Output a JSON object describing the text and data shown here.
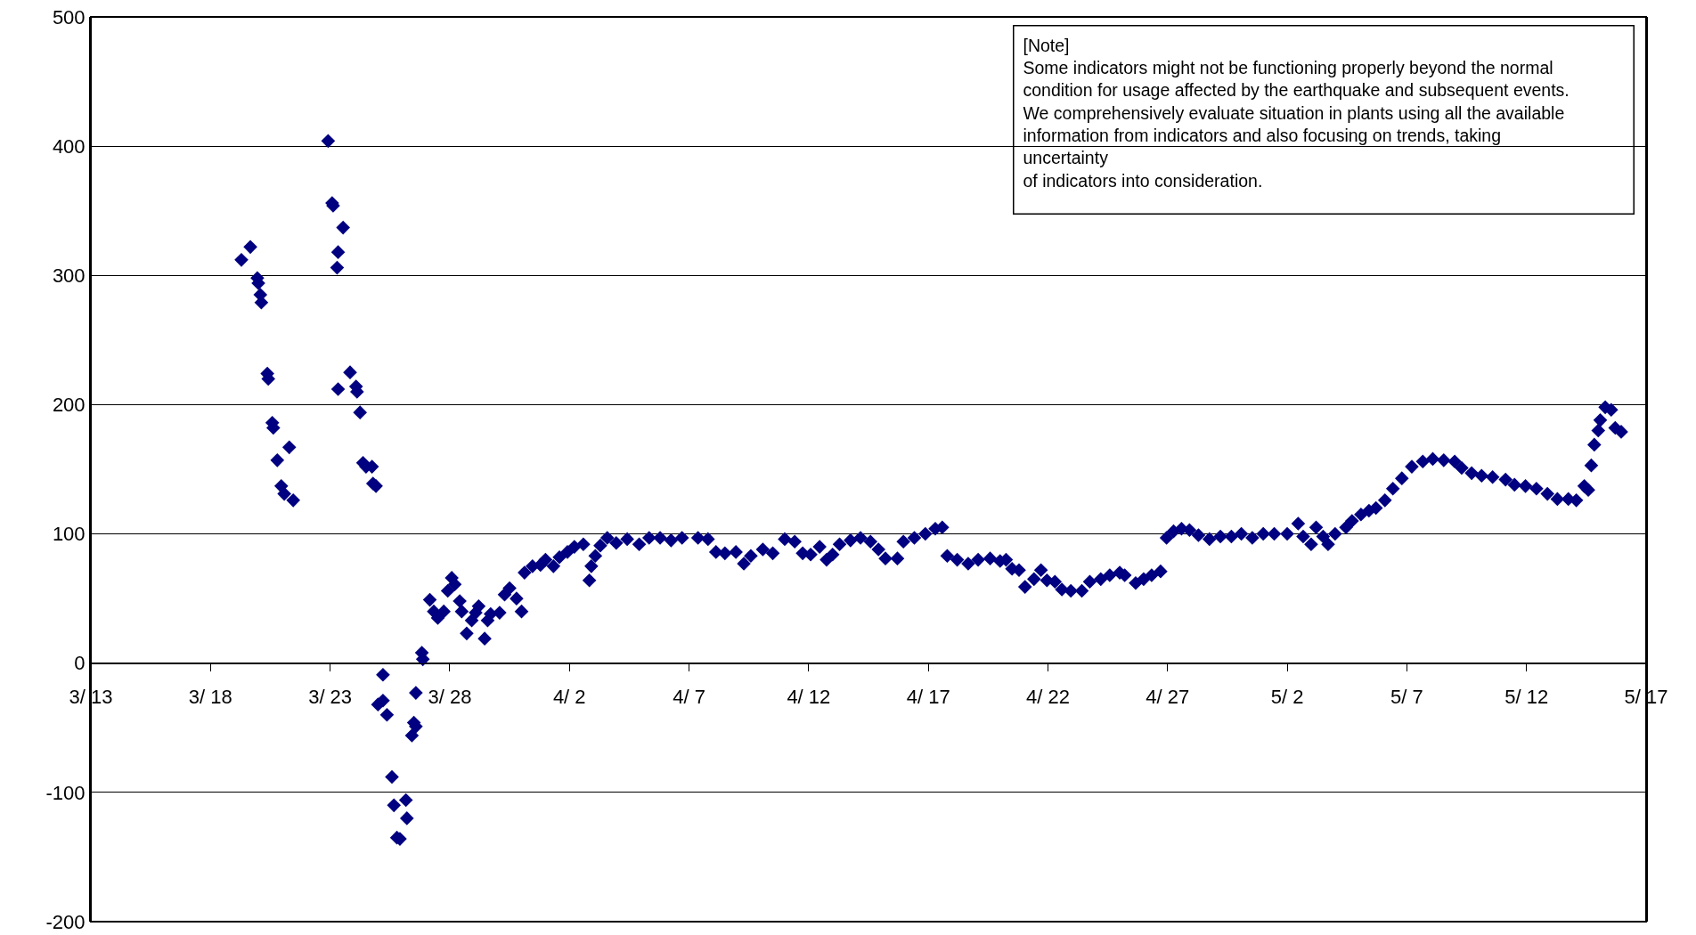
{
  "chart_data": {
    "type": "scatter",
    "marker": "diamond",
    "grid": "y",
    "xlim": [
      "--03-13",
      "--05-17"
    ],
    "xticks": [
      {
        "value": "--03-13",
        "label": "3/ 13"
      },
      {
        "value": "--03-18",
        "label": "3/ 18"
      },
      {
        "value": "--03-23",
        "label": "3/ 23"
      },
      {
        "value": "--03-28",
        "label": "3/ 28"
      },
      {
        "value": "--04-02",
        "label": "4/ 2"
      },
      {
        "value": "--04-07",
        "label": "4/ 7"
      },
      {
        "value": "--04-12",
        "label": "4/ 12"
      },
      {
        "value": "--04-17",
        "label": "4/ 17"
      },
      {
        "value": "--04-22",
        "label": "4/ 22"
      },
      {
        "value": "--04-27",
        "label": "4/ 27"
      },
      {
        "value": "--05-02",
        "label": "5/ 2"
      },
      {
        "value": "--05-07",
        "label": "5/ 7"
      },
      {
        "value": "--05-12",
        "label": "5/ 12"
      },
      {
        "value": "--05-17",
        "label": "5/ 17"
      }
    ],
    "ylim": [
      -200,
      500
    ],
    "yticks": [
      -200,
      -100,
      0,
      100,
      200,
      300,
      400,
      500
    ],
    "annotations": [
      "[Note]\nSome indicators might not be functioning properly beyond the normal\ncondition for usage affected by the earthquake and subsequent events.\nWe comprehensively evaluate situation in plants using all the available\ninformation from indicators and also focusing on trends, taking\nuncertainty\nof indicators into consideration."
    ],
    "series": [
      {
        "color": "#000080",
        "x": [
          "--03-19T07:00",
          "--03-19T16:00",
          "--03-19T23:00",
          "--03-20T00:00",
          "--03-20T02:00",
          "--03-20T03:00",
          "--03-20T09:00",
          "--03-20T10:00",
          "--03-20T14:00",
          "--03-20T15:00",
          "--03-20T19:00",
          "--03-20T23:00",
          "--03-21T02:00",
          "--03-21T07:00",
          "--03-21T11:00",
          "--03-22T22:00",
          "--03-23T02:00",
          "--03-23T03:00",
          "--03-23T08:00",
          "--03-23T13:00",
          "--03-23T07:00",
          "--03-23T08:00",
          "--03-23T20:00",
          "--03-24T02:00",
          "--03-24T03:00",
          "--03-24T06:00",
          "--03-24T09:00",
          "--03-24T12:00",
          "--03-24T18:00",
          "--03-24T19:00",
          "--03-24T22:00",
          "--03-25T05:00",
          "--03-25T00:00",
          "--03-25T05:00",
          "--03-25T09:00",
          "--03-25T14:00",
          "--03-25T16:00",
          "--03-25T19:00",
          "--03-25T22:00",
          "--03-26T04:00",
          "--03-26T05:00",
          "--03-26T10:00",
          "--03-26T12:00",
          "--03-26T14:00",
          "--03-26T14:00",
          "--03-26T20:00",
          "--03-26T21:00",
          "--03-27T04:00",
          "--03-27T08:00",
          "--03-27T12:00",
          "--03-27T18:00",
          "--03-27T22:00",
          "--03-28T02:00",
          "--03-28T05:00",
          "--03-28T10:00",
          "--03-28T12:00",
          "--03-28T17:00",
          "--03-28T22:00",
          "--03-29T02:00",
          "--03-29T05:00",
          "--03-29T11:00",
          "--03-29T14:00",
          "--03-29T17:00",
          "--03-30T02:00",
          "--03-30T07:00",
          "--03-30T12:00",
          "--03-30T19:00",
          "--03-31T00:00",
          "--03-31T03:00",
          "--03-31T11:00",
          "--03-31T19:00",
          "--04-01T00:00",
          "--04-01T08:00",
          "--04-01T14:00",
          "--04-01T22:00",
          "--04-02T05:00",
          "--04-02T14:00",
          "--04-02T20:00",
          "--04-02T22:00",
          "--04-03T02:00",
          "--04-03T07:00",
          "--04-03T14:00",
          "--04-03T23:00",
          "--04-04T10:00",
          "--04-04T22:00",
          "--04-05T08:00",
          "--04-05T19:00",
          "--04-06T06:00",
          "--04-06T17:00",
          "--04-07T09:00",
          "--04-07T19:00",
          "--04-08T03:00",
          "--04-08T12:00",
          "--04-08T23:00",
          "--04-09T07:00",
          "--04-09T14:00",
          "--04-10T02:00",
          "--04-10T12:00",
          "--04-11T00:00",
          "--04-11T10:00",
          "--04-11T18:00",
          "--04-12T02:00",
          "--04-12T11:00",
          "--04-12T18:00",
          "--04-13T00:00",
          "--04-13T07:00",
          "--04-13T18:00",
          "--04-14T04:00",
          "--04-14T14:00",
          "--04-14T22:00",
          "--04-15T05:00",
          "--04-15T17:00",
          "--04-15T23:00",
          "--04-16T10:00",
          "--04-16T21:00",
          "--04-17T07:00",
          "--04-17T14:00",
          "--04-17T19:00",
          "--04-18T05:00",
          "--04-18T16:00",
          "--04-19T02:00",
          "--04-19T14:00",
          "--04-20T00:00",
          "--04-20T06:00",
          "--04-20T12:00",
          "--04-20T19:00",
          "--04-21T01:00",
          "--04-21T10:00",
          "--04-21T17:00",
          "--04-21T23:00",
          "--04-22T07:00",
          "--04-22T14:00",
          "--04-22T23:00",
          "--04-23T10:00",
          "--04-23T18:00",
          "--04-24T05:00",
          "--04-24T14:00",
          "--04-25T00:00",
          "--04-25T05:00",
          "--04-25T16:00",
          "--04-26T00:00",
          "--04-26T08:00",
          "--04-26T17:00",
          "--04-26T23:00",
          "--04-27T06:00",
          "--04-27T14:00",
          "--04-27T22:00",
          "--04-28T07:00",
          "--04-28T18:00",
          "--04-29T05:00",
          "--04-29T16:00",
          "--04-30T02:00",
          "--04-30T13:00",
          "--05-01T00:00",
          "--05-01T11:00",
          "--05-02T00:00",
          "--05-02T11:00",
          "--05-02T16:00",
          "--05-03T00:00",
          "--05-03T05:00",
          "--05-03T12:00",
          "--05-03T17:00",
          "--05-04T00:00",
          "--05-04T11:00",
          "--05-04T17:00",
          "--05-05T02:00",
          "--05-05T10:00",
          "--05-05T17:00",
          "--05-06T02:00",
          "--05-06T10:00",
          "--05-06T19:00",
          "--05-07T05:00",
          "--05-07T16:00",
          "--05-08T02:00",
          "--05-08T13:00",
          "--05-09T00:00",
          "--05-09T07:00",
          "--05-09T17:00",
          "--05-10T03:00",
          "--05-10T14:00",
          "--05-11T03:00",
          "--05-11T12:00",
          "--05-11T23:00",
          "--05-12T10:00",
          "--05-12T21:00",
          "--05-13T07:00",
          "--05-13T18:00",
          "--05-14T02:00",
          "--05-14T10:00",
          "--05-14T14:00",
          "--05-14T17:00",
          "--05-14T20:00",
          "--05-15T00:00",
          "--05-15T02:00",
          "--05-15T07:00",
          "--05-15T13:00",
          "--05-15T17:00",
          "--05-15T23:00"
        ],
        "values": [
          312,
          322,
          298,
          294,
          285,
          279,
          224,
          220,
          186,
          182,
          157,
          137,
          131,
          167,
          126,
          404,
          356,
          354,
          318,
          337,
          306,
          212,
          225,
          214,
          210,
          194,
          155,
          152,
          152,
          139,
          137,
          -9,
          -32,
          -29,
          -40,
          -88,
          -110,
          -135,
          -136,
          -106,
          -120,
          -56,
          -46,
          -23,
          -49,
          8,
          3,
          49,
          40,
          35,
          40,
          56,
          66,
          61,
          48,
          40,
          23,
          33,
          39,
          44,
          19,
          33,
          38,
          39,
          53,
          58,
          50,
          40,
          70,
          75,
          76,
          80,
          75,
          82,
          86,
          90,
          92,
          64,
          75,
          83,
          91,
          97,
          93,
          96,
          92,
          97,
          97,
          95,
          97,
          97,
          96,
          86,
          85,
          86,
          77,
          83,
          88,
          85,
          96,
          94,
          85,
          84,
          90,
          80,
          84,
          92,
          95,
          97,
          94,
          88,
          81,
          81,
          94,
          97,
          100,
          104,
          105,
          83,
          80,
          77,
          80,
          81,
          79,
          80,
          73,
          72,
          59,
          65,
          72,
          64,
          63,
          57,
          56,
          56,
          63,
          65,
          68,
          70,
          68,
          62,
          65,
          68,
          71,
          97,
          102,
          104,
          103,
          99,
          96,
          98,
          98,
          100,
          97,
          100,
          100,
          100,
          108,
          98,
          92,
          105,
          98,
          92,
          100,
          105,
          110,
          115,
          118,
          120,
          126,
          135,
          143,
          152,
          156,
          158,
          157,
          156,
          151,
          147,
          145,
          144,
          142,
          138,
          137,
          135,
          131,
          127,
          127,
          126,
          137,
          134,
          153,
          169,
          180,
          188,
          198,
          196,
          182,
          179
        ]
      }
    ]
  }
}
